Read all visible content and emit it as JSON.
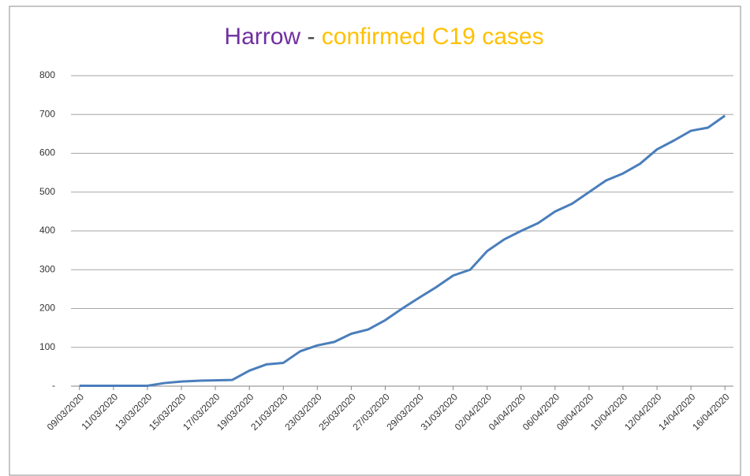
{
  "chart_data": {
    "type": "line",
    "title_parts": [
      "Harrow",
      "-",
      "confirmed C19 cases"
    ],
    "title_colors": [
      "#7030a0",
      "#404040",
      "#ffc000"
    ],
    "categories": [
      "09/03/2020",
      null,
      "11/03/2020",
      null,
      "13/03/2020",
      null,
      "15/03/2020",
      null,
      "17/03/2020",
      null,
      "19/03/2020",
      null,
      "21/03/2020",
      null,
      "23/03/2020",
      null,
      "25/03/2020",
      null,
      "27/03/2020",
      null,
      "29/03/2020",
      null,
      "31/03/2020",
      null,
      "02/04/2020",
      null,
      "04/04/2020",
      null,
      "06/04/2020",
      null,
      "08/04/2020",
      null,
      "10/04/2020",
      null,
      "12/04/2020",
      null,
      "14/04/2020",
      null,
      "16/04/2020"
    ],
    "series": [
      {
        "color": "#4a7ebb",
        "values": [
          1,
          1,
          1,
          1,
          1,
          8,
          12,
          14,
          15,
          16,
          40,
          56,
          60,
          90,
          105,
          114,
          135,
          146,
          170,
          200,
          228,
          255,
          285,
          300,
          348,
          378,
          400,
          420,
          450,
          470,
          500,
          530,
          548,
          573,
          610,
          633,
          658,
          666,
          697
        ]
      }
    ],
    "ylim": [
      0,
      800
    ],
    "yticks": [
      {
        "value": 0,
        "label": "-"
      },
      100,
      200,
      300,
      400,
      500,
      600,
      700,
      800
    ],
    "grid": true
  }
}
